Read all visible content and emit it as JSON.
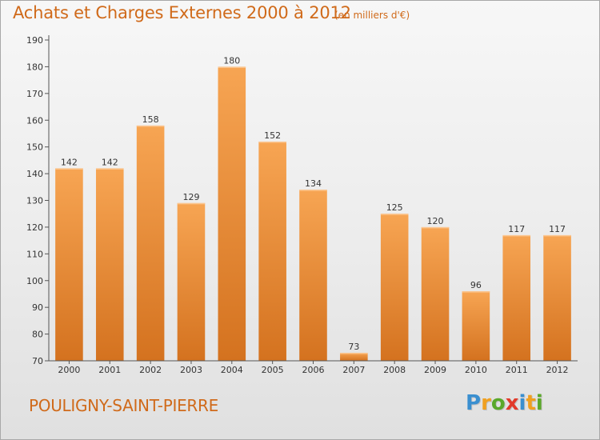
{
  "header": {
    "title": "Achats et Charges Externes 2000 à 2012",
    "subtitle": "(en milliers d'€)"
  },
  "footer": {
    "commune": "POULIGNY-SAINT-PIERRE",
    "logo_letters": [
      "P",
      "r",
      "o",
      "x",
      "i",
      "t",
      "i"
    ],
    "logo_colors": [
      "#3a8fd0",
      "#f0a020",
      "#5aa82a",
      "#e23a2a",
      "#3a8fd0",
      "#f0a020",
      "#5aa82a"
    ]
  },
  "chart_data": {
    "type": "bar",
    "categories": [
      "2000",
      "2001",
      "2002",
      "2003",
      "2004",
      "2005",
      "2006",
      "2007",
      "2008",
      "2009",
      "2010",
      "2011",
      "2012"
    ],
    "values": [
      142,
      142,
      158,
      129,
      180,
      152,
      134,
      73,
      125,
      120,
      96,
      117,
      117
    ],
    "ylim": [
      70,
      190
    ],
    "yticks": [
      70,
      80,
      90,
      100,
      110,
      120,
      130,
      140,
      150,
      160,
      170,
      180,
      190
    ],
    "title": "Achats et Charges Externes 2000 à 2012",
    "xlabel": "",
    "ylabel": "",
    "grid": false,
    "bar_color_top": "#f7a553",
    "bar_color_bottom": "#d4721f"
  }
}
